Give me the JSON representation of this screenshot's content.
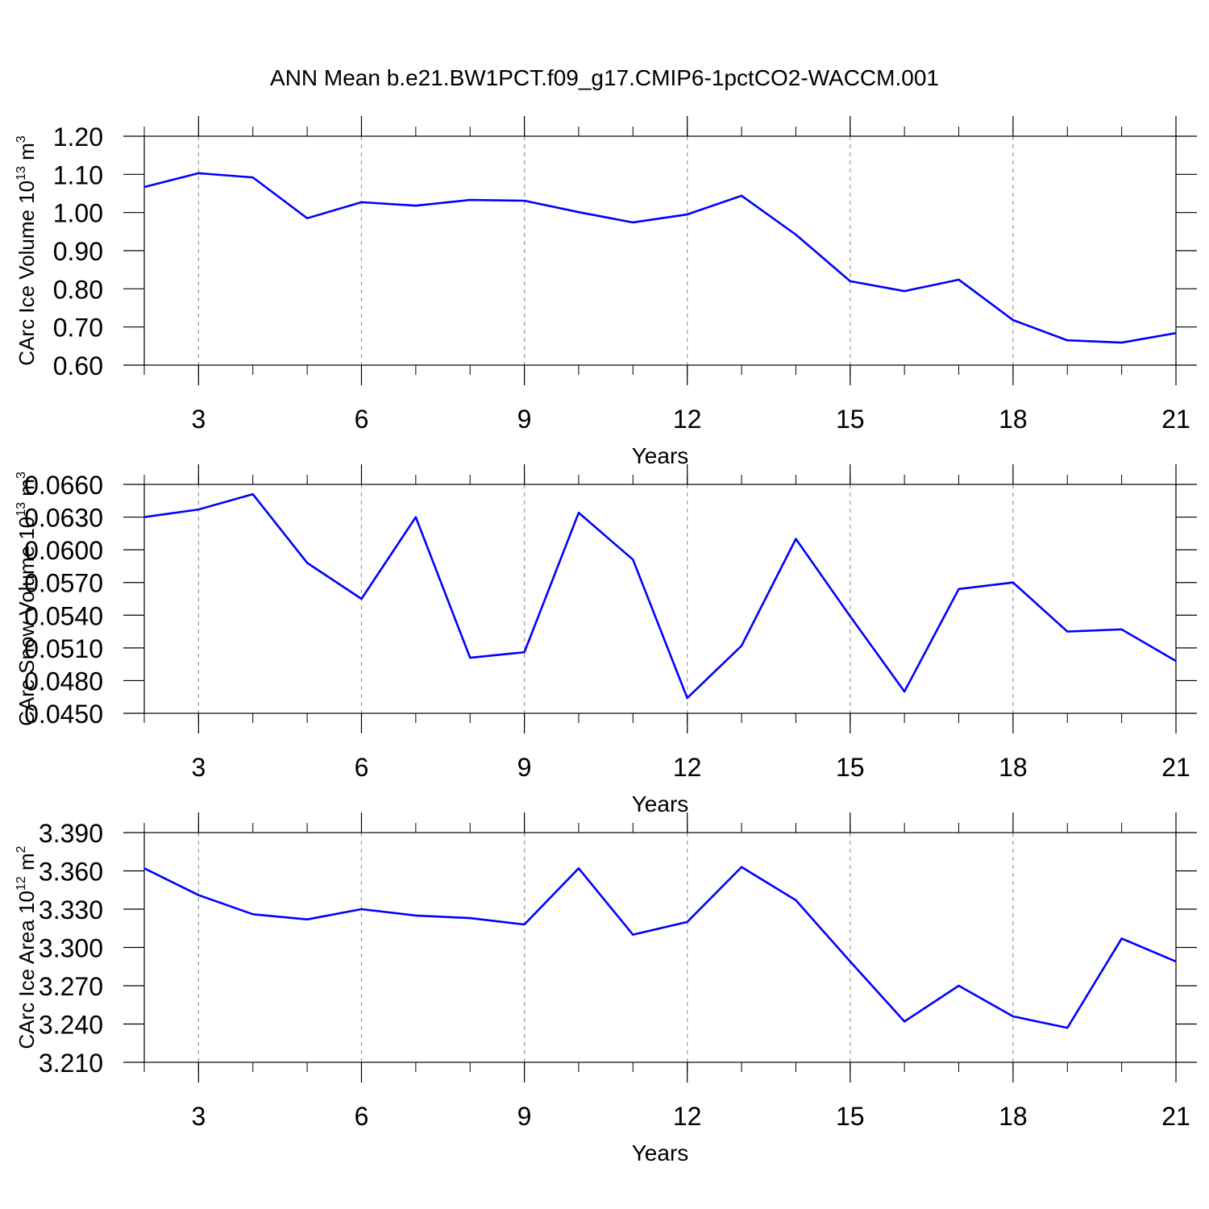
{
  "chart_data": [
    {
      "type": "line",
      "title": "ANN Mean b.e21.BW1PCT.f09_g17.CMIP6-1pctCO2-WACCM.001",
      "xlabel": "Years",
      "ylabel": {
        "text": "CArc Ice Volume 10",
        "exp": "13",
        "unit": " m",
        "unit_exp": "3"
      },
      "x": [
        2,
        3,
        4,
        5,
        6,
        7,
        8,
        9,
        10,
        11,
        12,
        13,
        14,
        15,
        16,
        17,
        18,
        19,
        20,
        21
      ],
      "series": [
        {
          "color": "#0000ff",
          "values": [
            1.067,
            1.103,
            1.092,
            0.985,
            1.027,
            1.018,
            1.033,
            1.031,
            1.001,
            0.974,
            0.995,
            1.044,
            0.942,
            0.82,
            0.794,
            0.824,
            0.718,
            0.665,
            0.659,
            0.684
          ]
        }
      ],
      "xlim": [
        2,
        21
      ],
      "xticks": [
        3,
        6,
        9,
        12,
        15,
        18,
        21
      ],
      "ylim": [
        0.6,
        1.2
      ],
      "yticks": [
        {
          "value": 0.6,
          "label": "0.60"
        },
        {
          "value": 0.7,
          "label": "0.70"
        },
        {
          "value": 0.8,
          "label": "0.80"
        },
        {
          "value": 0.9,
          "label": "0.90"
        },
        {
          "value": 1.0,
          "label": "1.00"
        },
        {
          "value": 1.1,
          "label": "1.10"
        },
        {
          "value": 1.2,
          "label": "1.20"
        }
      ],
      "grid": true
    },
    {
      "type": "line",
      "xlabel": "Years",
      "ylabel": {
        "text": "CArc Snow Volume 10",
        "exp": "13",
        "unit": " m",
        "unit_exp": "3"
      },
      "x": [
        2,
        3,
        4,
        5,
        6,
        7,
        8,
        9,
        10,
        11,
        12,
        13,
        14,
        15,
        16,
        17,
        18,
        19,
        20,
        21
      ],
      "series": [
        {
          "color": "#0000ff",
          "values": [
            0.063,
            0.0637,
            0.0651,
            0.0588,
            0.0555,
            0.063,
            0.0501,
            0.0506,
            0.0634,
            0.0591,
            0.0464,
            0.0512,
            0.061,
            0.0539,
            0.047,
            0.0564,
            0.057,
            0.0525,
            0.0527,
            0.0498
          ]
        }
      ],
      "xlim": [
        2,
        21
      ],
      "xticks": [
        3,
        6,
        9,
        12,
        15,
        18,
        21
      ],
      "ylim": [
        0.045,
        0.066
      ],
      "yticks": [
        {
          "value": 0.045,
          "label": "0.0450"
        },
        {
          "value": 0.048,
          "label": "0.0480"
        },
        {
          "value": 0.051,
          "label": "0.0510"
        },
        {
          "value": 0.054,
          "label": "0.0540"
        },
        {
          "value": 0.057,
          "label": "0.0570"
        },
        {
          "value": 0.06,
          "label": "0.0600"
        },
        {
          "value": 0.063,
          "label": "0.0630"
        },
        {
          "value": 0.066,
          "label": "0.0660"
        }
      ],
      "grid": true
    },
    {
      "type": "line",
      "xlabel": "Years",
      "ylabel": {
        "text": "CArc Ice Area 10",
        "exp": "12",
        "unit": " m",
        "unit_exp": "2"
      },
      "x": [
        2,
        3,
        4,
        5,
        6,
        7,
        8,
        9,
        10,
        11,
        12,
        13,
        14,
        15,
        16,
        17,
        18,
        19,
        20,
        21
      ],
      "series": [
        {
          "color": "#0000ff",
          "values": [
            3.362,
            3.341,
            3.326,
            3.322,
            3.33,
            3.325,
            3.323,
            3.318,
            3.362,
            3.31,
            3.32,
            3.363,
            3.337,
            3.289,
            3.242,
            3.27,
            3.246,
            3.237,
            3.307,
            3.289
          ]
        }
      ],
      "xlim": [
        2,
        21
      ],
      "xticks": [
        3,
        6,
        9,
        12,
        15,
        18,
        21
      ],
      "ylim": [
        3.21,
        3.39
      ],
      "yticks": [
        {
          "value": 3.21,
          "label": "3.210"
        },
        {
          "value": 3.24,
          "label": "3.240"
        },
        {
          "value": 3.27,
          "label": "3.270"
        },
        {
          "value": 3.3,
          "label": "3.300"
        },
        {
          "value": 3.33,
          "label": "3.330"
        },
        {
          "value": 3.36,
          "label": "3.360"
        },
        {
          "value": 3.39,
          "label": "3.390"
        }
      ],
      "grid": true
    }
  ]
}
